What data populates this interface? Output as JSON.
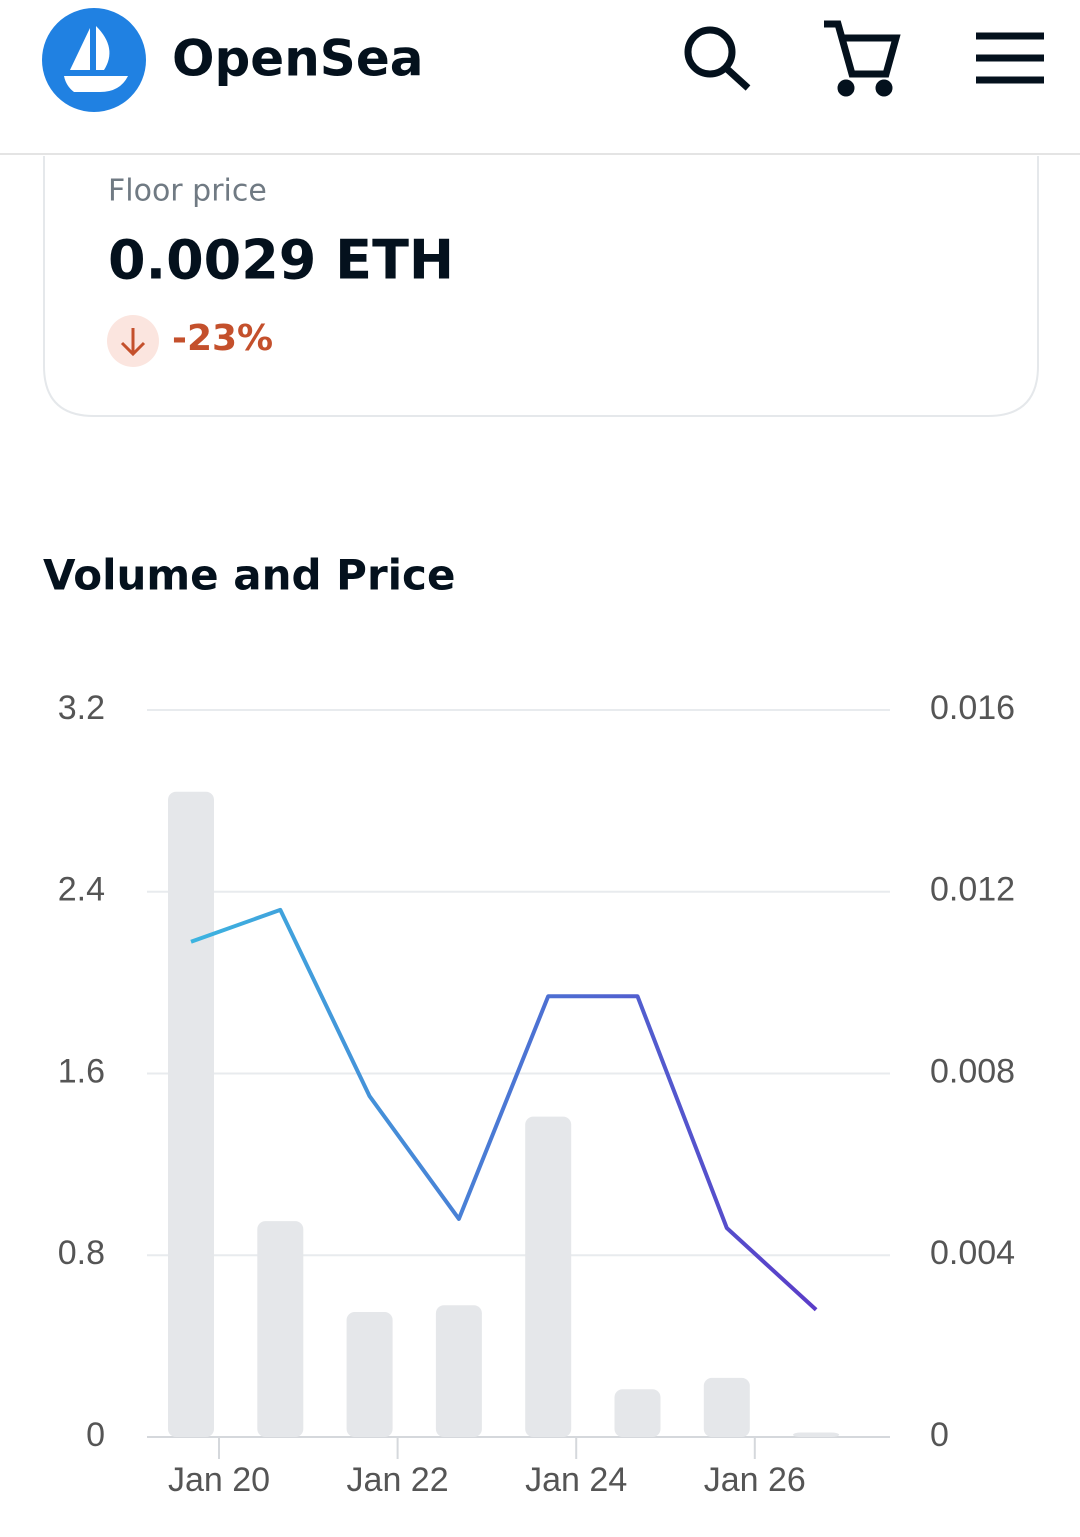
{
  "header": {
    "brand": "OpenSea"
  },
  "floor": {
    "label": "Floor price",
    "value": "0.0029 ETH",
    "change": "-23%"
  },
  "chart_data": {
    "type": "bar-line",
    "title": "Volume and Price",
    "categories": [
      "Jan 20",
      null,
      "Jan 22",
      null,
      "Jan 24",
      null,
      "Jan 26",
      null
    ],
    "series": [
      {
        "color": "#e5e7ea",
        "values": [
          2.84,
          0.95,
          0.55,
          0.58,
          1.41,
          0.21,
          0.26,
          0.02
        ]
      },
      {
        "color": "#3cb4e0",
        "axis": "y2",
        "values": [
          0.0109,
          0.0116,
          0.0075,
          0.0048,
          0.0097,
          0.0097,
          0.0046,
          0.0028
        ]
      }
    ],
    "ylim": [
      0,
      3.2
    ],
    "yticks": [
      0,
      0.8,
      1.6,
      2.4,
      3.2
    ],
    "y2lim": [
      0,
      0.016
    ],
    "y2ticks": [
      0,
      0.004,
      0.008,
      0.012,
      0.016
    ],
    "grid": true
  }
}
